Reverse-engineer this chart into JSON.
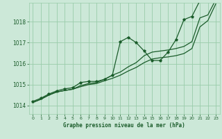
{
  "background_color": "#cce8d8",
  "grid_color": "#99ccaa",
  "line_color": "#1a5c2a",
  "title": "Graphe pression niveau de la mer (hPa)",
  "xlim": [
    -0.5,
    23.5
  ],
  "ylim": [
    1013.6,
    1018.9
  ],
  "yticks": [
    1014,
    1015,
    1016,
    1017,
    1018
  ],
  "xticks": [
    0,
    1,
    2,
    3,
    4,
    5,
    6,
    7,
    8,
    9,
    10,
    11,
    12,
    13,
    14,
    15,
    16,
    17,
    18,
    19,
    20,
    21,
    22,
    23
  ],
  "series1_y": [
    1014.2,
    1014.35,
    1014.55,
    1014.7,
    1014.8,
    1014.85,
    1015.1,
    1015.15,
    1015.15,
    1015.25,
    1015.45,
    1017.05,
    1017.25,
    1017.0,
    1016.6,
    1016.15,
    1016.15,
    1016.55,
    1017.15,
    1018.1,
    1018.25,
    1019.0,
    1019.05,
    1019.15
  ],
  "series2_y": [
    1014.15,
    1014.3,
    1014.5,
    1014.65,
    1014.72,
    1014.78,
    1014.9,
    1015.0,
    1015.05,
    1015.18,
    1015.3,
    1015.45,
    1015.65,
    1015.82,
    1016.05,
    1016.22,
    1016.28,
    1016.32,
    1016.38,
    1016.48,
    1016.72,
    1017.75,
    1018.05,
    1018.85
  ],
  "series3_y": [
    1014.15,
    1014.3,
    1014.5,
    1014.65,
    1014.72,
    1014.78,
    1014.95,
    1015.05,
    1015.1,
    1015.25,
    1015.45,
    1015.6,
    1015.85,
    1016.05,
    1016.38,
    1016.55,
    1016.6,
    1016.65,
    1016.72,
    1016.82,
    1017.05,
    1018.18,
    1018.32,
    1019.05
  ]
}
